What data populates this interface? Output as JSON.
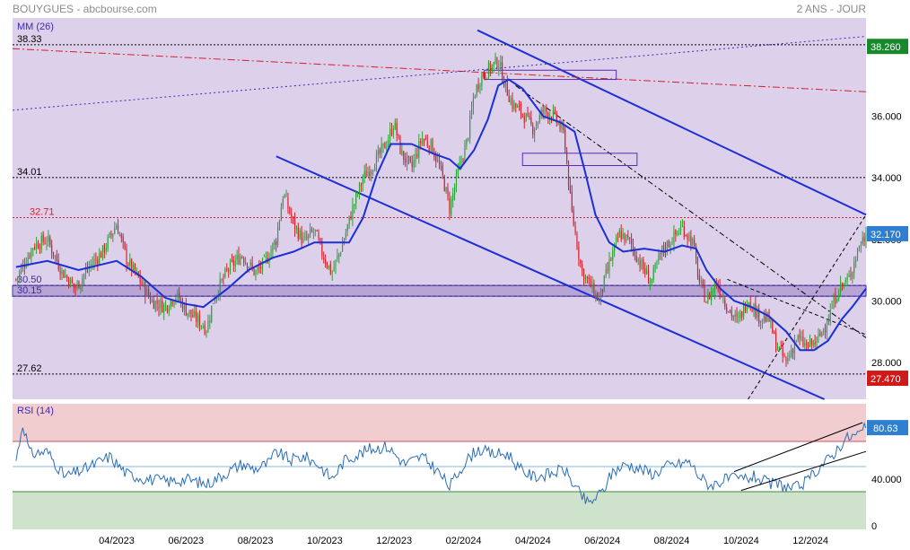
{
  "header": {
    "title": "BOUYGUES - abcbourse.com",
    "period": "2 ANS - JOUR"
  },
  "colors": {
    "price_bg": "#dcd0ea",
    "rsi_overbought": "#f1cdd0",
    "rsi_oversold": "#cfe3cc",
    "up": "#2aa336",
    "down": "#d61f2a",
    "ma": "#1a2fd6",
    "channel": "#1f2fd6",
    "rsi_line": "#2a6db8",
    "last_badge": "#2f7fd0",
    "high_badge": "#168a2b",
    "low_badge": "#d01a1a"
  },
  "chart_data": [
    {
      "type": "candlestick",
      "title": "BOUYGUES",
      "indicator_label": "MM (26)",
      "ylim": [
        26.8,
        39.2
      ],
      "y_ticks": [
        28.0,
        30.0,
        32.0,
        34.0,
        36.0
      ],
      "y_tick_labels": [
        "28.000",
        "30.000",
        "32.000",
        "34.000",
        "36.000"
      ],
      "x_tick_labels": [
        "04/2023",
        "06/2023",
        "08/2023",
        "10/2023",
        "12/2023",
        "02/2024",
        "04/2024",
        "06/2024",
        "08/2024",
        "10/2024",
        "12/2024"
      ],
      "x_tick_months": [
        3,
        5,
        7,
        9,
        11,
        13,
        15,
        17,
        19,
        21,
        23
      ],
      "x_range_months": [
        0.0,
        24.6
      ],
      "close_anchors": [
        [
          0.1,
          30.7
        ],
        [
          0.6,
          31.8
        ],
        [
          1.0,
          32.0
        ],
        [
          1.4,
          31.0
        ],
        [
          1.8,
          30.4
        ],
        [
          2.2,
          31.1
        ],
        [
          2.6,
          31.6
        ],
        [
          3.0,
          32.5
        ],
        [
          3.3,
          31.3
        ],
        [
          3.7,
          30.6
        ],
        [
          4.0,
          30.0
        ],
        [
          4.4,
          29.8
        ],
        [
          4.7,
          30.2
        ],
        [
          5.0,
          29.7
        ],
        [
          5.3,
          29.4
        ],
        [
          5.6,
          29.1
        ],
        [
          5.8,
          30.1
        ],
        [
          6.2,
          31.0
        ],
        [
          6.6,
          31.5
        ],
        [
          7.0,
          30.9
        ],
        [
          7.3,
          31.3
        ],
        [
          7.6,
          32.0
        ],
        [
          7.8,
          33.5
        ],
        [
          8.1,
          32.5
        ],
        [
          8.4,
          31.9
        ],
        [
          8.7,
          32.3
        ],
        [
          8.9,
          31.6
        ],
        [
          9.2,
          30.9
        ],
        [
          9.5,
          31.8
        ],
        [
          9.8,
          33.0
        ],
        [
          10.1,
          34.0
        ],
        [
          10.5,
          34.6
        ],
        [
          10.8,
          35.2
        ],
        [
          11.0,
          35.8
        ],
        [
          11.2,
          34.8
        ],
        [
          11.5,
          34.3
        ],
        [
          11.8,
          35.3
        ],
        [
          12.1,
          35.0
        ],
        [
          12.4,
          34.0
        ],
        [
          12.6,
          33.0
        ],
        [
          12.8,
          34.0
        ],
        [
          13.1,
          35.2
        ],
        [
          13.3,
          36.7
        ],
        [
          13.5,
          37.3
        ],
        [
          13.8,
          37.6
        ],
        [
          14.0,
          37.8
        ],
        [
          14.2,
          37.0
        ],
        [
          14.4,
          36.4
        ],
        [
          14.7,
          36.1
        ],
        [
          15.0,
          35.6
        ],
        [
          15.3,
          36.2
        ],
        [
          15.6,
          36.0
        ],
        [
          15.9,
          35.4
        ],
        [
          16.1,
          33.0
        ],
        [
          16.4,
          31.0
        ],
        [
          16.7,
          30.4
        ],
        [
          16.9,
          30.0
        ],
        [
          17.2,
          31.2
        ],
        [
          17.5,
          32.2
        ],
        [
          17.8,
          31.9
        ],
        [
          18.1,
          31.2
        ],
        [
          18.4,
          30.6
        ],
        [
          18.7,
          31.6
        ],
        [
          19.0,
          32.0
        ],
        [
          19.3,
          32.4
        ],
        [
          19.6,
          31.9
        ],
        [
          19.8,
          30.6
        ],
        [
          20.0,
          30.0
        ],
        [
          20.3,
          30.6
        ],
        [
          20.6,
          29.8
        ],
        [
          20.9,
          29.3
        ],
        [
          21.2,
          30.1
        ],
        [
          21.5,
          29.5
        ],
        [
          21.8,
          29.4
        ],
        [
          22.0,
          28.6
        ],
        [
          22.3,
          28.0
        ],
        [
          22.6,
          28.8
        ],
        [
          22.9,
          28.5
        ],
        [
          23.2,
          28.7
        ],
        [
          23.5,
          29.4
        ],
        [
          23.8,
          30.4
        ],
        [
          24.1,
          30.7
        ],
        [
          24.4,
          31.8
        ],
        [
          24.6,
          32.17
        ]
      ],
      "moving_average": [
        [
          0.1,
          31.1
        ],
        [
          1.0,
          31.3
        ],
        [
          1.9,
          31.0
        ],
        [
          3.0,
          31.3
        ],
        [
          3.7,
          30.8
        ],
        [
          4.4,
          30.1
        ],
        [
          5.0,
          29.9
        ],
        [
          5.5,
          29.8
        ],
        [
          6.2,
          30.4
        ],
        [
          6.8,
          31.0
        ],
        [
          7.5,
          31.4
        ],
        [
          8.1,
          31.6
        ],
        [
          8.7,
          31.9
        ],
        [
          9.3,
          31.9
        ],
        [
          9.7,
          31.9
        ],
        [
          10.1,
          32.7
        ],
        [
          10.5,
          34.1
        ],
        [
          10.9,
          35.1
        ],
        [
          11.5,
          35.1
        ],
        [
          12.1,
          34.8
        ],
        [
          12.6,
          34.6
        ],
        [
          12.9,
          34.3
        ],
        [
          13.3,
          34.9
        ],
        [
          13.7,
          35.9
        ],
        [
          14.0,
          37.0
        ],
        [
          14.3,
          37.2
        ],
        [
          14.7,
          36.9
        ],
        [
          15.3,
          36.0
        ],
        [
          15.8,
          35.8
        ],
        [
          16.2,
          35.5
        ],
        [
          16.5,
          34.2
        ],
        [
          16.8,
          32.8
        ],
        [
          17.2,
          31.9
        ],
        [
          17.6,
          31.6
        ],
        [
          18.2,
          31.7
        ],
        [
          18.8,
          31.6
        ],
        [
          19.3,
          31.8
        ],
        [
          19.7,
          31.7
        ],
        [
          20.0,
          31.0
        ],
        [
          20.4,
          30.4
        ],
        [
          20.8,
          30.0
        ],
        [
          21.3,
          29.8
        ],
        [
          21.8,
          29.5
        ],
        [
          22.3,
          29.0
        ],
        [
          22.7,
          28.4
        ],
        [
          23.1,
          28.4
        ],
        [
          23.5,
          28.7
        ],
        [
          23.9,
          29.4
        ],
        [
          24.2,
          29.8
        ],
        [
          24.6,
          30.4
        ]
      ],
      "levels": [
        {
          "label": "38.33",
          "value": 38.33
        },
        {
          "label": "34.01",
          "value": 34.01
        },
        {
          "label": "32.71",
          "value": 32.71
        },
        {
          "label": "30.50",
          "value": 30.5
        },
        {
          "label": "30.15",
          "value": 30.15
        },
        {
          "label": "27.62",
          "value": 27.62
        }
      ],
      "support_band": [
        30.15,
        30.5
      ],
      "resistance_boxes": [
        [
          13.6,
          17.4,
          37.2,
          37.5
        ],
        [
          14.7,
          18.0,
          34.4,
          34.8
        ]
      ],
      "trendlines": [
        {
          "style": "solid",
          "from": [
            13.4,
            38.8
          ],
          "to": [
            24.6,
            32.8
          ]
        },
        {
          "style": "solid",
          "from": [
            7.6,
            34.7
          ],
          "to": [
            23.4,
            26.8
          ]
        },
        {
          "style": "dashdot-red",
          "from": [
            0.0,
            38.2
          ],
          "to": [
            24.6,
            36.8
          ]
        },
        {
          "style": "dotted",
          "from": [
            0.0,
            36.2
          ],
          "to": [
            24.6,
            38.6
          ]
        },
        {
          "style": "dashdot",
          "from": [
            14.5,
            37.0
          ],
          "to": [
            24.6,
            28.8
          ]
        },
        {
          "style": "dashed",
          "from": [
            21.2,
            26.8
          ],
          "to": [
            24.6,
            32.8
          ]
        },
        {
          "style": "dashed",
          "from": [
            20.6,
            30.7
          ],
          "to": [
            24.6,
            28.9
          ]
        }
      ],
      "last_value": "32.170",
      "high_value": "38.260",
      "low_value": "27.470",
      "high_numeric": 38.26,
      "low_numeric": 27.47
    },
    {
      "type": "line",
      "title": "RSI (14)",
      "ylim": [
        0,
        100
      ],
      "y_ticks": [
        40,
        0
      ],
      "y_tick_labels": [
        "40.000",
        "0"
      ],
      "bands": {
        "overbought": 70,
        "mid": 50,
        "oversold": 30
      },
      "rsi_anchors": [
        [
          0.1,
          55
        ],
        [
          0.3,
          85
        ],
        [
          0.5,
          60
        ],
        [
          1.0,
          62
        ],
        [
          1.5,
          42
        ],
        [
          2.1,
          48
        ],
        [
          2.8,
          58
        ],
        [
          3.3,
          44
        ],
        [
          3.9,
          40
        ],
        [
          4.5,
          38
        ],
        [
          5.0,
          40
        ],
        [
          5.6,
          36
        ],
        [
          6.1,
          44
        ],
        [
          6.6,
          52
        ],
        [
          7.0,
          48
        ],
        [
          7.4,
          53
        ],
        [
          7.6,
          62
        ],
        [
          8.0,
          55
        ],
        [
          8.4,
          58
        ],
        [
          8.8,
          52
        ],
        [
          9.2,
          40
        ],
        [
          9.6,
          56
        ],
        [
          10.0,
          60
        ],
        [
          10.3,
          64
        ],
        [
          10.8,
          66
        ],
        [
          11.3,
          52
        ],
        [
          11.8,
          58
        ],
        [
          12.2,
          48
        ],
        [
          12.6,
          34
        ],
        [
          13.0,
          52
        ],
        [
          13.4,
          64
        ],
        [
          13.8,
          60
        ],
        [
          14.3,
          60
        ],
        [
          14.6,
          48
        ],
        [
          15.0,
          42
        ],
        [
          15.5,
          44
        ],
        [
          15.9,
          48
        ],
        [
          16.3,
          30
        ],
        [
          16.6,
          20
        ],
        [
          17.0,
          30
        ],
        [
          17.3,
          46
        ],
        [
          17.7,
          52
        ],
        [
          18.1,
          48
        ],
        [
          18.5,
          44
        ],
        [
          18.8,
          50
        ],
        [
          19.2,
          52
        ],
        [
          19.5,
          54
        ],
        [
          19.8,
          42
        ],
        [
          20.1,
          35
        ],
        [
          20.6,
          40
        ],
        [
          21.0,
          40
        ],
        [
          21.4,
          42
        ],
        [
          21.8,
          36
        ],
        [
          22.1,
          36
        ],
        [
          22.5,
          32
        ],
        [
          22.9,
          38
        ],
        [
          23.2,
          48
        ],
        [
          23.6,
          58
        ],
        [
          24.0,
          72
        ],
        [
          24.4,
          76
        ],
        [
          24.6,
          80.63
        ]
      ],
      "channel_lines": [
        {
          "from": [
            20.8,
            46
          ],
          "to": [
            24.5,
            85
          ]
        },
        {
          "from": [
            21.0,
            31
          ],
          "to": [
            24.6,
            62
          ]
        }
      ],
      "last_value": "80.63"
    }
  ]
}
